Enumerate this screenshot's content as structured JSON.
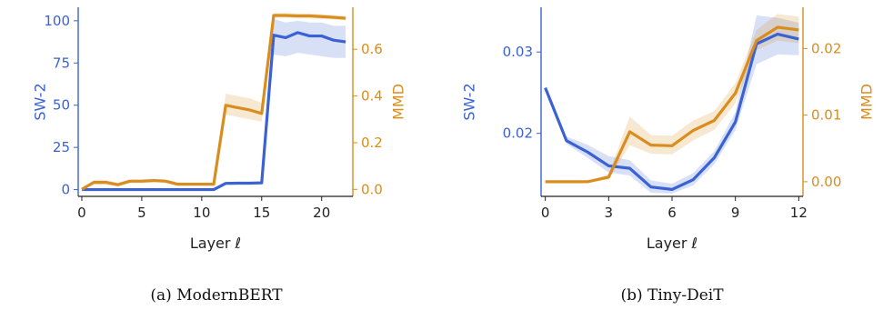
{
  "colors": {
    "sw2": "#3a62d4",
    "mmd": "#d98d1e",
    "axis": "#222222"
  },
  "chart_data": [
    {
      "type": "line",
      "caption": "(a) ModernBERT",
      "xlabel": "Layer ℓ",
      "ylabel_left": "SW-2",
      "ylabel_right": "MMD",
      "xlim": [
        -0.3,
        22.6
      ],
      "ylim_left": [
        -4,
        108
      ],
      "ylim_right": [
        -0.03,
        0.78
      ],
      "xticks": [
        0,
        5,
        10,
        15,
        20
      ],
      "yticks_left": [
        0,
        25,
        50,
        75,
        100
      ],
      "yticks_right": [
        0.0,
        0.2,
        0.4,
        0.6
      ],
      "right_tick_decimals": 1,
      "series": [
        {
          "name": "SW-2",
          "axis": "left",
          "color": "#3a62d4",
          "x": [
            0,
            1,
            2,
            3,
            4,
            5,
            6,
            7,
            8,
            9,
            10,
            11,
            12,
            13,
            14,
            15,
            16,
            17,
            18,
            19,
            20,
            21,
            22
          ],
          "y": [
            0,
            0,
            0,
            0,
            0,
            0,
            0,
            0,
            0,
            0,
            0,
            0,
            3.7,
            3.8,
            3.8,
            4,
            91.5,
            90,
            93,
            91,
            91,
            88.5,
            87.5
          ],
          "band_lower": [
            0,
            0,
            0,
            0,
            0,
            0,
            0,
            0,
            0,
            0,
            0,
            0,
            3.2,
            3.3,
            3.3,
            3.5,
            80,
            79,
            81,
            80,
            79,
            78,
            78
          ],
          "band_upper": [
            0,
            0,
            0,
            0,
            0,
            0,
            0,
            0,
            0,
            0,
            0,
            0,
            4.2,
            4.3,
            4.3,
            4.5,
            101,
            99,
            100,
            99,
            99,
            97,
            97
          ]
        },
        {
          "name": "MMD",
          "axis": "right",
          "color": "#d98d1e",
          "x": [
            0,
            1,
            2,
            3,
            4,
            5,
            6,
            7,
            8,
            9,
            10,
            11,
            12,
            13,
            14,
            15,
            16,
            17,
            18,
            19,
            20,
            21,
            22
          ],
          "y": [
            0.0,
            0.03,
            0.03,
            0.02,
            0.035,
            0.035,
            0.038,
            0.035,
            0.022,
            0.022,
            0.022,
            0.022,
            0.36,
            0.35,
            0.34,
            0.325,
            0.745,
            0.745,
            0.743,
            0.743,
            0.74,
            0.737,
            0.733
          ],
          "band_lower": [
            0.0,
            0.02,
            0.02,
            0.012,
            0.027,
            0.027,
            0.03,
            0.027,
            0.015,
            0.015,
            0.015,
            0.015,
            0.32,
            0.31,
            0.3,
            0.29,
            0.735,
            0.735,
            0.733,
            0.733,
            0.73,
            0.727,
            0.723
          ],
          "band_upper": [
            0.0,
            0.04,
            0.04,
            0.028,
            0.043,
            0.043,
            0.046,
            0.043,
            0.029,
            0.029,
            0.029,
            0.029,
            0.41,
            0.4,
            0.39,
            0.37,
            0.755,
            0.755,
            0.753,
            0.753,
            0.75,
            0.747,
            0.743
          ]
        }
      ]
    },
    {
      "type": "line",
      "caption": "(b) Tiny-DeiT",
      "xlabel": "Layer ℓ",
      "ylabel_left": "SW-2",
      "ylabel_right": "MMD",
      "xlim": [
        -0.2,
        12.2
      ],
      "ylim_left": [
        0.01225,
        0.0355
      ],
      "ylim_right": [
        -0.0022,
        0.0262
      ],
      "xticks": [
        0,
        3,
        6,
        9,
        12
      ],
      "yticks_left": [
        0.02,
        0.03
      ],
      "yticks_right": [
        0.0,
        0.01,
        0.02
      ],
      "left_tick_decimals": 2,
      "right_tick_decimals": 2,
      "series": [
        {
          "name": "SW-2",
          "axis": "left",
          "color": "#3a62d4",
          "x": [
            0,
            1,
            2,
            3,
            4,
            5,
            6,
            7,
            8,
            9,
            10,
            11,
            12
          ],
          "y": [
            0.0256,
            0.0191,
            0.0177,
            0.016,
            0.0157,
            0.0134,
            0.0131,
            0.0143,
            0.017,
            0.0214,
            0.031,
            0.0322,
            0.0316
          ],
          "band_lower": [
            0.0256,
            0.0187,
            0.017,
            0.0152,
            0.0148,
            0.0127,
            0.0126,
            0.0136,
            0.0162,
            0.0204,
            0.0285,
            0.0297,
            0.0296
          ],
          "band_upper": [
            0.0256,
            0.0196,
            0.0186,
            0.0172,
            0.0167,
            0.0142,
            0.0138,
            0.0151,
            0.0178,
            0.0226,
            0.0345,
            0.0342,
            0.0336
          ]
        },
        {
          "name": "MMD",
          "axis": "right",
          "color": "#d98d1e",
          "x": [
            0,
            1,
            2,
            3,
            4,
            5,
            6,
            7,
            8,
            9,
            10,
            11,
            12
          ],
          "y": [
            0.0,
            0.0,
            0.0,
            0.0007,
            0.0075,
            0.0055,
            0.0054,
            0.0077,
            0.0092,
            0.0133,
            0.0212,
            0.0232,
            0.0228
          ],
          "band_lower": [
            0.0,
            0.0,
            0.0,
            0.0003,
            0.0055,
            0.0042,
            0.0041,
            0.0062,
            0.0078,
            0.0118,
            0.0198,
            0.0212,
            0.0208
          ],
          "band_upper": [
            0.0,
            0.0,
            0.0,
            0.0012,
            0.0098,
            0.007,
            0.0069,
            0.0092,
            0.0106,
            0.0148,
            0.0228,
            0.0252,
            0.0248
          ]
        }
      ]
    }
  ]
}
